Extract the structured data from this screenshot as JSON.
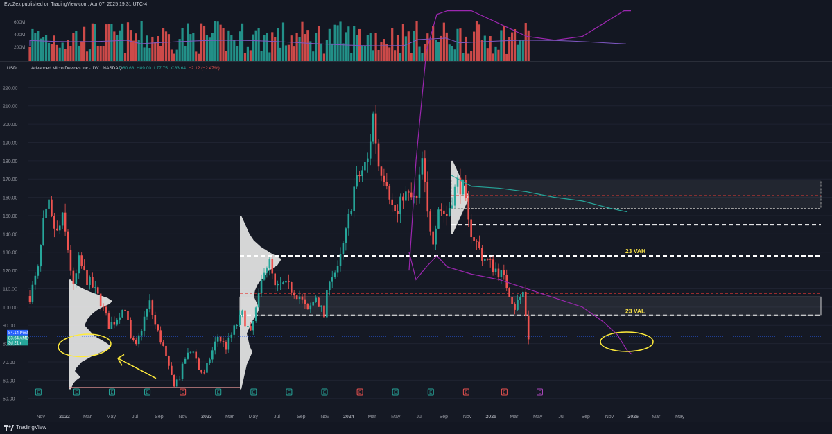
{
  "header": {
    "published_text": "EvoZex published on TradingView.com, Apr 07, 2025 19:31 UTC-4"
  },
  "footer": {
    "brand": "TradingView"
  },
  "colors": {
    "background": "#151924",
    "up": "#26a69a",
    "down": "#ef5350",
    "profile": "#e6e6e6",
    "vwap_band": "#9c27b0",
    "poc_dash": "#e53935",
    "highlight_yellow": "#ffeb3b",
    "label_yellow": "#f7e146",
    "moving_average": "#26a69a"
  },
  "chart_data": {
    "type": "candlestick",
    "symbol_title": "Advanced Micro Devices Inc · 1W · NASDAQ",
    "ohlc_label": {
      "o": "O80.68",
      "h": "H89.00",
      "l": "L77.75",
      "c": "C83.64",
      "change": "−2.12 (−2.47%)"
    },
    "currency": "USD",
    "ylim": [
      48,
      230
    ],
    "y_ticks": [
      "220.00",
      "210.00",
      "200.00",
      "190.00",
      "180.00",
      "170.00",
      "160.00",
      "150.00",
      "140.00",
      "130.00",
      "120.00",
      "110.00",
      "100.00",
      "90.00",
      "80.00",
      "70.00",
      "60.00",
      "50.00"
    ],
    "x_ticks": [
      "Nov",
      "2022",
      "Mar",
      "May",
      "Jul",
      "Sep",
      "Nov",
      "2023",
      "Mar",
      "May",
      "Jul",
      "Sep",
      "Nov",
      "2024",
      "Mar",
      "May",
      "Jul",
      "Sep",
      "Nov",
      "2025",
      "Mar",
      "May",
      "Jul",
      "Sep",
      "Nov",
      "2026",
      "Mar",
      "May"
    ],
    "x_start": "2021-10-04",
    "price_labels": [
      {
        "label": "84.14",
        "sub": "Post"
      },
      {
        "label": "83.64",
        "sub": "AMD"
      },
      {
        "label": "3d 21h",
        "sub": ""
      }
    ],
    "volume_axis": [
      "600M",
      "400M",
      "200M"
    ],
    "annotations": [
      {
        "text": "23 VAH",
        "price": 128
      },
      {
        "text": "23 VAL",
        "price": 95.5
      }
    ],
    "earnings_markers": [
      {
        "date": "2021-10-26",
        "type": "E",
        "color": "up"
      },
      {
        "date": "2022-02-01",
        "type": "E",
        "color": "up"
      },
      {
        "date": "2022-05-03",
        "type": "E",
        "color": "up"
      },
      {
        "date": "2022-08-02",
        "type": "E",
        "color": "up"
      },
      {
        "date": "2022-11-01",
        "type": "E",
        "color": "down"
      },
      {
        "date": "2023-01-31",
        "type": "E",
        "color": "up"
      },
      {
        "date": "2023-05-02",
        "type": "E",
        "color": "up"
      },
      {
        "date": "2023-08-01",
        "type": "E",
        "color": "up"
      },
      {
        "date": "2023-10-31",
        "type": "E",
        "color": "up"
      },
      {
        "date": "2024-01-30",
        "type": "E",
        "color": "down"
      },
      {
        "date": "2024-04-30",
        "type": "E",
        "color": "up"
      },
      {
        "date": "2024-07-30",
        "type": "E",
        "color": "up"
      },
      {
        "date": "2024-10-29",
        "type": "E",
        "color": "down"
      },
      {
        "date": "2025-02-04",
        "type": "E",
        "color": "down"
      },
      {
        "date": "2025-05-06",
        "type": "E",
        "color": "purple"
      }
    ],
    "weekly_close_path": [
      [
        "2021-10-04",
        106
      ],
      [
        "2021-10-25",
        120
      ],
      [
        "2021-11-08",
        145
      ],
      [
        "2021-11-22",
        155
      ],
      [
        "2021-11-29",
        147
      ],
      [
        "2021-12-13",
        140
      ],
      [
        "2021-12-27",
        148
      ],
      [
        "2022-01-10",
        132
      ],
      [
        "2022-01-24",
        110
      ],
      [
        "2022-02-07",
        125
      ],
      [
        "2022-02-28",
        115
      ],
      [
        "2022-03-14",
        111
      ],
      [
        "2022-04-04",
        103
      ],
      [
        "2022-04-25",
        90
      ],
      [
        "2022-05-09",
        92
      ],
      [
        "2022-05-23",
        97
      ],
      [
        "2022-06-06",
        100
      ],
      [
        "2022-06-20",
        82
      ],
      [
        "2022-07-04",
        78
      ],
      [
        "2022-07-25",
        94
      ],
      [
        "2022-08-08",
        102
      ],
      [
        "2022-08-22",
        90
      ],
      [
        "2022-09-12",
        78
      ],
      [
        "2022-09-26",
        66
      ],
      [
        "2022-10-10",
        58
      ],
      [
        "2022-10-24",
        62
      ],
      [
        "2022-11-07",
        72
      ],
      [
        "2022-11-28",
        77
      ],
      [
        "2022-12-12",
        66
      ],
      [
        "2022-12-26",
        63
      ],
      [
        "2023-01-09",
        72
      ],
      [
        "2023-01-30",
        84
      ],
      [
        "2023-02-20",
        78
      ],
      [
        "2023-03-13",
        88
      ],
      [
        "2023-04-03",
        96
      ],
      [
        "2023-04-24",
        85
      ],
      [
        "2023-05-15",
        105
      ],
      [
        "2023-05-29",
        122
      ],
      [
        "2023-06-12",
        124
      ],
      [
        "2023-06-26",
        110
      ],
      [
        "2023-07-17",
        112
      ],
      [
        "2023-08-07",
        110
      ],
      [
        "2023-08-28",
        106
      ],
      [
        "2023-09-18",
        97
      ],
      [
        "2023-10-09",
        106
      ],
      [
        "2023-10-30",
        95
      ],
      [
        "2023-11-13",
        117
      ],
      [
        "2023-12-04",
        120
      ],
      [
        "2023-12-25",
        140
      ],
      [
        "2024-01-15",
        165
      ],
      [
        "2024-01-29",
        172
      ],
      [
        "2024-02-19",
        180
      ],
      [
        "2024-03-04",
        205
      ],
      [
        "2024-03-18",
        178
      ],
      [
        "2024-04-08",
        170
      ],
      [
        "2024-04-22",
        155
      ],
      [
        "2024-05-06",
        150
      ],
      [
        "2024-05-20",
        162
      ],
      [
        "2024-06-03",
        160
      ],
      [
        "2024-06-24",
        158
      ],
      [
        "2024-07-08",
        180
      ],
      [
        "2024-07-22",
        150
      ],
      [
        "2024-08-05",
        138
      ],
      [
        "2024-08-19",
        155
      ],
      [
        "2024-09-09",
        150
      ],
      [
        "2024-09-23",
        160
      ],
      [
        "2024-10-07",
        168
      ],
      [
        "2024-10-21",
        165
      ],
      [
        "2024-11-04",
        145
      ],
      [
        "2024-11-18",
        138
      ],
      [
        "2024-12-09",
        128
      ],
      [
        "2025-01-06",
        122
      ],
      [
        "2025-01-27",
        118
      ],
      [
        "2025-02-10",
        112
      ],
      [
        "2025-03-03",
        100
      ],
      [
        "2025-03-24",
        108
      ],
      [
        "2025-04-07",
        83.64
      ]
    ]
  }
}
